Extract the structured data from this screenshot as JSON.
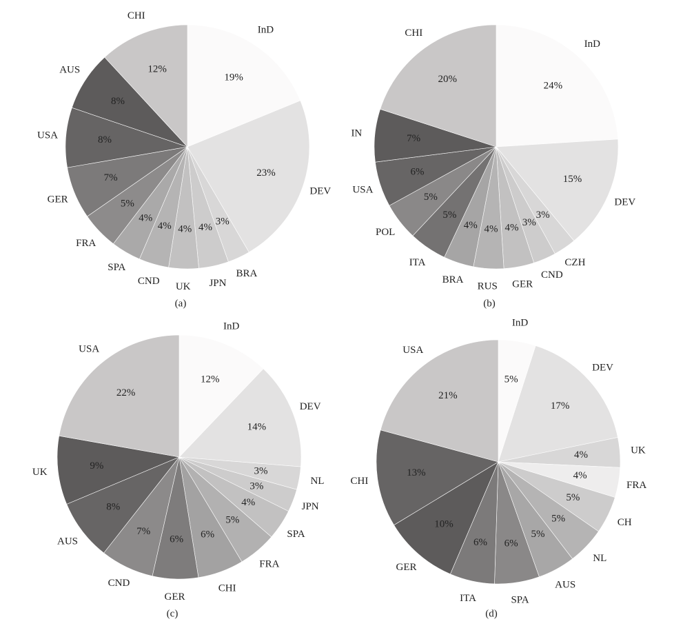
{
  "chart_data": [
    {
      "type": "pie",
      "caption": "(a)",
      "categories": [
        "InD",
        "DEV",
        "BRA",
        "JPN",
        "UK",
        "CND",
        "SPA",
        "FRA",
        "GER",
        "USA",
        "AUS",
        "CHI"
      ],
      "values": [
        19,
        23,
        3,
        4,
        4,
        4,
        4,
        5,
        7,
        8,
        8,
        12
      ],
      "value_labels": [
        "19%",
        "23%",
        "3%",
        "4%",
        "4%",
        "4%",
        "4%",
        "5%",
        "7%",
        "8%",
        "8%",
        "12%"
      ],
      "colors": [
        "#fbfafa",
        "#e3e2e2",
        "#d8d7d7",
        "#cdcccc",
        "#c2c1c1",
        "#b5b4b4",
        "#aaa9a9",
        "#8d8b8b",
        "#7c7a7a",
        "#666464",
        "#5d5b5b",
        "#c9c7c7"
      ]
    },
    {
      "type": "pie",
      "caption": "(b)",
      "categories": [
        "InD",
        "DEV",
        "CZH",
        "CND",
        "GER",
        "RUS",
        "BRA",
        "ITA",
        "POL",
        "USA",
        "IN",
        "CHI"
      ],
      "values": [
        24,
        15,
        3,
        3,
        4,
        4,
        4,
        5,
        5,
        6,
        7,
        20
      ],
      "value_labels": [
        "24%",
        "15%",
        "3%",
        "3%",
        "4%",
        "4%",
        "4%",
        "5%",
        "5%",
        "6%",
        "7%",
        "20%"
      ],
      "colors": [
        "#fbfafa",
        "#e3e2e2",
        "#d8d7d7",
        "#cdcccc",
        "#c2c1c1",
        "#b5b4b4",
        "#a6a5a5",
        "#747272",
        "#8a8888",
        "#676565",
        "#5d5b5b",
        "#c9c7c7"
      ]
    },
    {
      "type": "pie",
      "caption": "(c)",
      "categories": [
        "InD",
        "DEV",
        "NL",
        "JPN",
        "SPA",
        "FRA",
        "CHI",
        "GER",
        "CND",
        "AUS",
        "UK",
        "USA"
      ],
      "values": [
        12,
        14,
        3,
        3,
        4,
        5,
        6,
        6,
        7,
        8,
        9,
        22
      ],
      "value_labels": [
        "12%",
        "14%",
        "3%",
        "3%",
        "4%",
        "5%",
        "6%",
        "6%",
        "7%",
        "8%",
        "9%",
        "22%"
      ],
      "colors": [
        "#fbfafa",
        "#e3e2e2",
        "#d8d7d7",
        "#cdcccc",
        "#c2c1c1",
        "#b2b1b1",
        "#a3a2a2",
        "#7e7c7c",
        "#8c8a8a",
        "#676565",
        "#5d5b5b",
        "#c9c7c7"
      ]
    },
    {
      "type": "pie",
      "caption": "(d)",
      "categories": [
        "InD",
        "DEV",
        "UK",
        "FRA",
        "CH",
        "NL",
        "AUS",
        "SPA",
        "ITA",
        "GER",
        "CHI",
        "USA"
      ],
      "values": [
        5,
        17,
        4,
        4,
        5,
        5,
        5,
        6,
        6,
        10,
        13,
        21
      ],
      "value_labels": [
        "5%",
        "17%",
        "4%",
        "4%",
        "5%",
        "5%",
        "5%",
        "6%",
        "6%",
        "10%",
        "13%",
        "21%"
      ],
      "colors": [
        "#fbfafa",
        "#e3e2e2",
        "#d8d7d7",
        "#eeeded",
        "#cdcccc",
        "#b5b4b4",
        "#a8a7a7",
        "#8a8888",
        "#7c7a7a",
        "#5d5b5b",
        "#666464",
        "#c9c7c7"
      ]
    }
  ]
}
